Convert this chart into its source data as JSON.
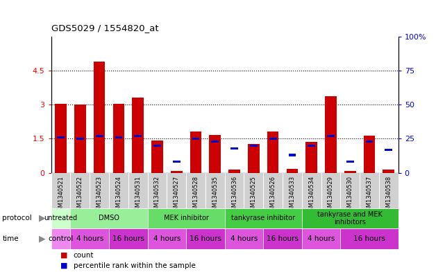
{
  "title": "GDS5029 / 1554820_at",
  "samples": [
    "GSM1340521",
    "GSM1340522",
    "GSM1340523",
    "GSM1340524",
    "GSM1340531",
    "GSM1340532",
    "GSM1340527",
    "GSM1340528",
    "GSM1340535",
    "GSM1340536",
    "GSM1340525",
    "GSM1340526",
    "GSM1340533",
    "GSM1340534",
    "GSM1340529",
    "GSM1340530",
    "GSM1340537",
    "GSM1340538"
  ],
  "count_values": [
    3.05,
    3.0,
    4.9,
    3.05,
    3.3,
    1.42,
    0.08,
    1.82,
    1.68,
    0.15,
    1.28,
    1.82,
    0.18,
    1.35,
    3.37,
    0.08,
    1.63,
    0.15
  ],
  "percentile_values": [
    26,
    25,
    27,
    26,
    27,
    20,
    8,
    25,
    23,
    18,
    20,
    25,
    13,
    20,
    27,
    8,
    23,
    17
  ],
  "ylim_left": [
    0,
    6
  ],
  "ylim_right": [
    0,
    100
  ],
  "yticks_left": [
    0,
    1.5,
    3.0,
    4.5
  ],
  "yticks_right": [
    0,
    25,
    50,
    75,
    100
  ],
  "bar_color_red": "#cc0000",
  "bar_color_blue": "#0000cc",
  "bar_width": 0.6,
  "protocols": [
    {
      "label": "untreated",
      "start": 0,
      "end": 1,
      "color": "#ccffcc"
    },
    {
      "label": "DMSO",
      "start": 1,
      "end": 5,
      "color": "#99ee99"
    },
    {
      "label": "MEK inhibitor",
      "start": 5,
      "end": 9,
      "color": "#66dd66"
    },
    {
      "label": "tankyrase inhibitor",
      "start": 9,
      "end": 13,
      "color": "#44cc44"
    },
    {
      "label": "tankyrase and MEK\ninhibitors",
      "start": 13,
      "end": 18,
      "color": "#33bb33"
    }
  ],
  "times": [
    {
      "label": "control",
      "start": 0,
      "end": 1,
      "color": "#ee88ee"
    },
    {
      "label": "4 hours",
      "start": 1,
      "end": 3,
      "color": "#dd55dd"
    },
    {
      "label": "16 hours",
      "start": 3,
      "end": 5,
      "color": "#cc33cc"
    },
    {
      "label": "4 hours",
      "start": 5,
      "end": 7,
      "color": "#dd55dd"
    },
    {
      "label": "16 hours",
      "start": 7,
      "end": 9,
      "color": "#cc33cc"
    },
    {
      "label": "4 hours",
      "start": 9,
      "end": 11,
      "color": "#dd55dd"
    },
    {
      "label": "16 hours",
      "start": 11,
      "end": 13,
      "color": "#cc33cc"
    },
    {
      "label": "4 hours",
      "start": 13,
      "end": 15,
      "color": "#dd55dd"
    },
    {
      "label": "16 hours",
      "start": 15,
      "end": 18,
      "color": "#cc33cc"
    }
  ],
  "sample_bg_color": "#d0d0d0",
  "plot_bg": "#ffffff",
  "grid_color": "#000000"
}
